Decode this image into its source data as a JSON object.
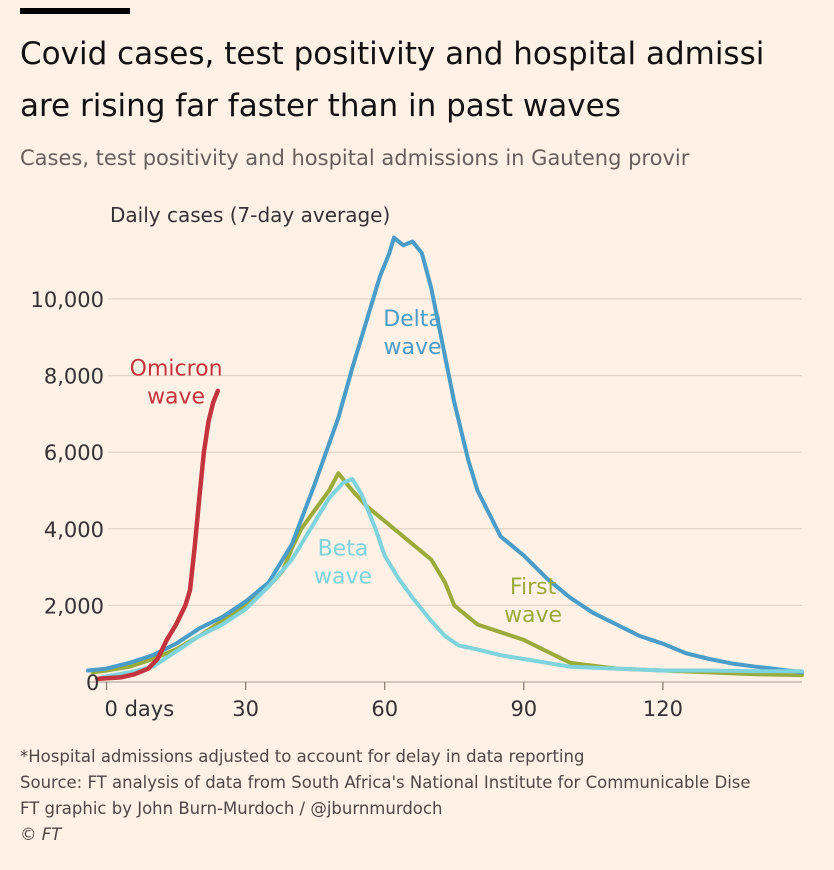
{
  "header": {
    "title_line1": "Covid cases, test positivity and hospital admissi",
    "title_line2": "are rising far faster than in past waves",
    "subtitle": "Cases, test positivity and hospital admissions in Gauteng provir"
  },
  "colors": {
    "background": "#fff1e5",
    "omicron": "#c4343f",
    "delta": "#4a9cc9",
    "beta": "#7fd3dc",
    "first": "#9aab3c",
    "grid": "#e2d5c9",
    "axis_text": "#333333"
  },
  "footer": {
    "note": "*Hospital admissions adjusted to account for delay in data reporting",
    "source": "Source: FT analysis of data from South Africa's National Institute for Communicable Dise",
    "credit": "FT graphic by John Burn-Murdoch / @jburnmurdoch",
    "copyright": "© FT"
  },
  "chart_data": {
    "type": "line",
    "ylabel": "Daily cases (7-day average)",
    "xlim": [
      -4,
      150
    ],
    "ylim": [
      0,
      11800
    ],
    "x_ticks": [
      {
        "value": 0,
        "label": "0 days"
      },
      {
        "value": 30,
        "label": "30"
      },
      {
        "value": 60,
        "label": "60"
      },
      {
        "value": 90,
        "label": "90"
      },
      {
        "value": 120,
        "label": "120"
      }
    ],
    "y_ticks": [
      {
        "value": 0,
        "label": "0"
      },
      {
        "value": 2000,
        "label": "2,000"
      },
      {
        "value": 4000,
        "label": "4,000"
      },
      {
        "value": 6000,
        "label": "6,000"
      },
      {
        "value": 8000,
        "label": "8,000"
      },
      {
        "value": 10000,
        "label": "10,000"
      }
    ],
    "grid": true,
    "series": [
      {
        "key": "first",
        "label_lines": [
          "First",
          "wave"
        ],
        "label_at": [
          92,
          2300
        ],
        "color": "#9aab3c",
        "points": [
          [
            -3,
            250
          ],
          [
            0,
            300
          ],
          [
            5,
            400
          ],
          [
            10,
            600
          ],
          [
            15,
            850
          ],
          [
            20,
            1200
          ],
          [
            25,
            1600
          ],
          [
            30,
            2000
          ],
          [
            35,
            2500
          ],
          [
            38,
            2900
          ],
          [
            40,
            3500
          ],
          [
            42,
            4000
          ],
          [
            45,
            4500
          ],
          [
            48,
            5000
          ],
          [
            50,
            5450
          ],
          [
            51,
            5300
          ],
          [
            53,
            5000
          ],
          [
            56,
            4600
          ],
          [
            60,
            4200
          ],
          [
            65,
            3700
          ],
          [
            70,
            3200
          ],
          [
            73,
            2600
          ],
          [
            75,
            2000
          ],
          [
            78,
            1700
          ],
          [
            80,
            1500
          ],
          [
            85,
            1300
          ],
          [
            90,
            1100
          ],
          [
            95,
            800
          ],
          [
            100,
            500
          ],
          [
            110,
            350
          ],
          [
            120,
            300
          ],
          [
            130,
            250
          ],
          [
            140,
            200
          ],
          [
            150,
            180
          ]
        ]
      },
      {
        "key": "delta",
        "label_lines": [
          "Delta",
          "wave"
        ],
        "label_at": [
          66,
          9300
        ],
        "color": "#4a9cc9",
        "points": [
          [
            -4,
            300
          ],
          [
            0,
            350
          ],
          [
            5,
            500
          ],
          [
            10,
            700
          ],
          [
            15,
            1000
          ],
          [
            20,
            1400
          ],
          [
            25,
            1700
          ],
          [
            30,
            2100
          ],
          [
            35,
            2600
          ],
          [
            40,
            3600
          ],
          [
            45,
            5200
          ],
          [
            50,
            6900
          ],
          [
            53,
            8200
          ],
          [
            56,
            9400
          ],
          [
            59,
            10600
          ],
          [
            61,
            11200
          ],
          [
            62,
            11600
          ],
          [
            64,
            11400
          ],
          [
            66,
            11500
          ],
          [
            68,
            11200
          ],
          [
            70,
            10300
          ],
          [
            72,
            9100
          ],
          [
            75,
            7300
          ],
          [
            78,
            5800
          ],
          [
            80,
            5000
          ],
          [
            85,
            3800
          ],
          [
            90,
            3300
          ],
          [
            95,
            2700
          ],
          [
            100,
            2200
          ],
          [
            105,
            1800
          ],
          [
            110,
            1500
          ],
          [
            115,
            1200
          ],
          [
            120,
            1000
          ],
          [
            125,
            750
          ],
          [
            130,
            600
          ],
          [
            135,
            480
          ],
          [
            140,
            400
          ],
          [
            145,
            330
          ],
          [
            150,
            250
          ]
        ]
      },
      {
        "key": "beta",
        "label_lines": [
          "Beta",
          "wave"
        ],
        "label_at": [
          51,
          3300
        ],
        "color": "#7fd3dc",
        "points": [
          [
            -2,
            80
          ],
          [
            0,
            150
          ],
          [
            5,
            250
          ],
          [
            10,
            400
          ],
          [
            15,
            800
          ],
          [
            20,
            1200
          ],
          [
            25,
            1500
          ],
          [
            30,
            1900
          ],
          [
            35,
            2500
          ],
          [
            40,
            3200
          ],
          [
            45,
            4200
          ],
          [
            48,
            4800
          ],
          [
            51,
            5200
          ],
          [
            53,
            5300
          ],
          [
            55,
            4900
          ],
          [
            58,
            4000
          ],
          [
            60,
            3300
          ],
          [
            63,
            2700
          ],
          [
            66,
            2200
          ],
          [
            70,
            1600
          ],
          [
            73,
            1200
          ],
          [
            76,
            950
          ],
          [
            80,
            850
          ],
          [
            85,
            700
          ],
          [
            90,
            600
          ],
          [
            95,
            500
          ],
          [
            100,
            400
          ],
          [
            110,
            350
          ],
          [
            120,
            300
          ],
          [
            130,
            300
          ],
          [
            140,
            280
          ],
          [
            150,
            280
          ]
        ]
      },
      {
        "key": "omicron",
        "label_lines": [
          "Omicron",
          "wave"
        ],
        "label_at": [
          15,
          8000
        ],
        "color": "#c4343f",
        "points": [
          [
            -2,
            80
          ],
          [
            0,
            100
          ],
          [
            3,
            120
          ],
          [
            6,
            200
          ],
          [
            9,
            350
          ],
          [
            11,
            600
          ],
          [
            13,
            1100
          ],
          [
            15,
            1500
          ],
          [
            17,
            2000
          ],
          [
            18,
            2400
          ],
          [
            19,
            3500
          ],
          [
            20,
            4800
          ],
          [
            21,
            6000
          ],
          [
            22,
            6800
          ],
          [
            23,
            7300
          ],
          [
            24,
            7600
          ]
        ]
      }
    ]
  }
}
